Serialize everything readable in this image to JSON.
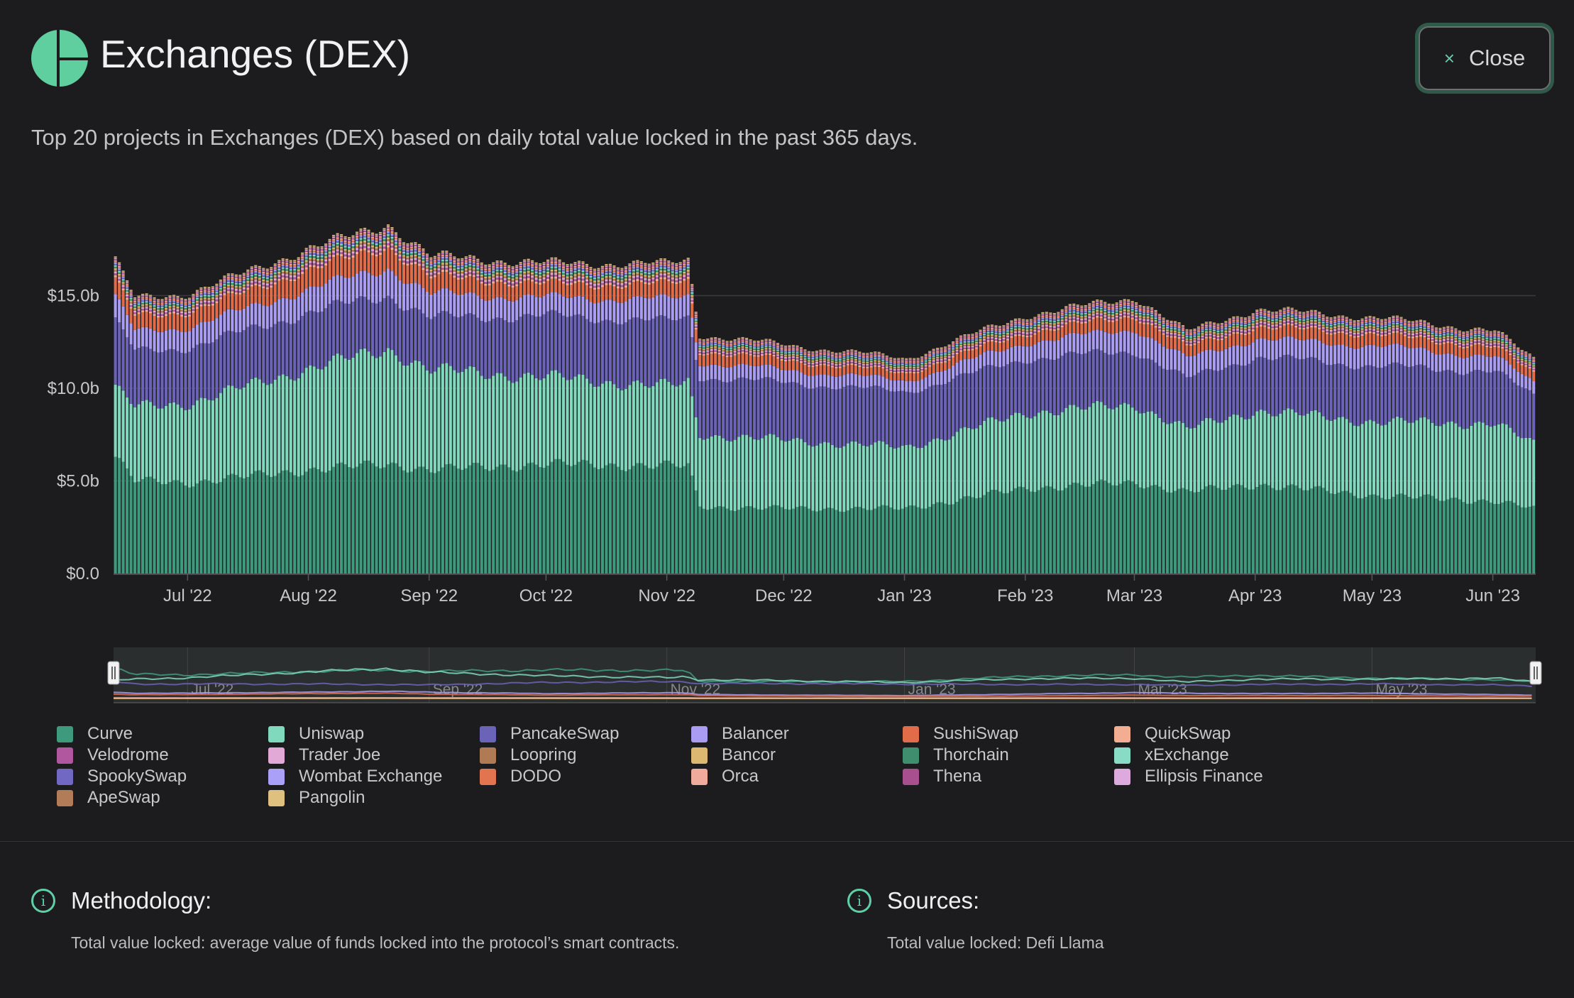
{
  "header": {
    "title": "Exchanges (DEX)",
    "close_label": "Close",
    "close_icon": "×"
  },
  "subtitle": "Top 20 projects in Exchanges (DEX) based on daily total value locked in the past 365 days.",
  "chart_data": {
    "type": "bar",
    "stacked": true,
    "title": "",
    "xlabel": "",
    "ylabel": "",
    "ylim": [
      0,
      19
    ],
    "y_ticks": [
      {
        "v": 0,
        "label": "$0.0"
      },
      {
        "v": 5,
        "label": "$5.0b"
      },
      {
        "v": 10,
        "label": "$10.0b"
      },
      {
        "v": 15,
        "label": "$15.0b"
      }
    ],
    "x_ticks": [
      {
        "d": 19,
        "label": "Jul '22"
      },
      {
        "d": 50,
        "label": "Aug '22"
      },
      {
        "d": 81,
        "label": "Sep '22"
      },
      {
        "d": 111,
        "label": "Oct '22"
      },
      {
        "d": 142,
        "label": "Nov '22"
      },
      {
        "d": 172,
        "label": "Dec '22"
      },
      {
        "d": 203,
        "label": "Jan '23"
      },
      {
        "d": 234,
        "label": "Feb '23"
      },
      {
        "d": 262,
        "label": "Mar '23"
      },
      {
        "d": 293,
        "label": "Apr '23"
      },
      {
        "d": 323,
        "label": "May '23"
      },
      {
        "d": 354,
        "label": "Jun '23"
      }
    ],
    "navigator_labels": [
      {
        "d": 19,
        "label": "Jul '22"
      },
      {
        "d": 81,
        "label": "Sep '22"
      },
      {
        "d": 142,
        "label": "Nov '22"
      },
      {
        "d": 203,
        "label": "Jan '23"
      },
      {
        "d": 262,
        "label": "Mar '23"
      },
      {
        "d": 323,
        "label": "May '23"
      }
    ],
    "days": 365,
    "key_days": [
      0,
      5,
      19,
      50,
      70,
      81,
      111,
      142,
      147,
      150,
      172,
      203,
      234,
      262,
      275,
      293,
      323,
      354,
      364
    ],
    "unit": "$ billions",
    "series": [
      {
        "name": "Curve",
        "color": "#3e9a7c",
        "values": [
          6.3,
          5.0,
          4.9,
          5.6,
          5.9,
          5.6,
          5.9,
          5.8,
          5.8,
          3.6,
          3.5,
          3.5,
          4.6,
          4.9,
          4.4,
          4.8,
          4.2,
          3.9,
          3.5
        ]
      },
      {
        "name": "Uniswap",
        "color": "#80d8bd",
        "values": [
          3.7,
          4.0,
          4.3,
          5.5,
          6.2,
          5.4,
          4.7,
          4.3,
          4.5,
          3.9,
          3.7,
          3.3,
          4.1,
          4.2,
          3.4,
          4.0,
          4.0,
          4.2,
          3.5
        ]
      },
      {
        "name": "PancakeSwap",
        "color": "#6b63b8",
        "values": [
          3.6,
          3.0,
          3.0,
          3.0,
          2.9,
          2.8,
          3.3,
          3.5,
          3.5,
          3.1,
          3.1,
          3.0,
          2.9,
          2.9,
          2.7,
          2.9,
          3.0,
          2.8,
          2.6
        ]
      },
      {
        "name": "Balancer",
        "color": "#a99cf2",
        "values": [
          1.3,
          1.1,
          1.1,
          1.3,
          1.5,
          1.3,
          1.0,
          1.2,
          1.2,
          0.8,
          0.7,
          0.6,
          0.9,
          1.2,
          1.1,
          1.0,
          1.1,
          0.8,
          0.7
        ]
      },
      {
        "name": "SushiSwap",
        "color": "#e06c4a",
        "values": [
          0.9,
          0.8,
          0.8,
          1.0,
          1.1,
          0.9,
          0.7,
          0.8,
          0.8,
          0.6,
          0.5,
          0.4,
          0.5,
          0.7,
          0.6,
          0.6,
          0.6,
          0.5,
          0.5
        ]
      },
      {
        "name": "QuickSwap",
        "color": "#f2ad92",
        "base": 0.09
      },
      {
        "name": "Velodrome",
        "color": "#b0579f",
        "base": 0.08
      },
      {
        "name": "Trader Joe",
        "color": "#e2a8d6",
        "base": 0.08
      },
      {
        "name": "Loopring",
        "color": "#b07a55",
        "base": 0.07
      },
      {
        "name": "Bancor",
        "color": "#dcb870",
        "base": 0.07
      },
      {
        "name": "Thorchain",
        "color": "#3f8f6e",
        "base": 0.07
      },
      {
        "name": "xExchange",
        "color": "#88dcc6",
        "base": 0.06
      },
      {
        "name": "SpookySwap",
        "color": "#7068c2",
        "base": 0.06
      },
      {
        "name": "Wombat Exchange",
        "color": "#aba0f7",
        "base": 0.06
      },
      {
        "name": "DODO",
        "color": "#e2754f",
        "base": 0.05
      },
      {
        "name": "Orca",
        "color": "#f0ab9c",
        "base": 0.05
      },
      {
        "name": "Thena",
        "color": "#a8508f",
        "base": 0.05
      },
      {
        "name": "Ellipsis Finance",
        "color": "#dcaadc",
        "base": 0.04
      },
      {
        "name": "ApeSwap",
        "color": "#b27c58",
        "base": 0.04
      },
      {
        "name": "Pangolin",
        "color": "#dfc07e",
        "base": 0.04
      }
    ]
  },
  "methodology": {
    "title": "Methodology:",
    "text": "Total value locked: average value of funds locked into the protocol’s smart contracts."
  },
  "sources": {
    "title": "Sources:",
    "text": "Total value locked: Defi Llama"
  },
  "colors": {
    "accent": "#5fd0a5",
    "background": "#1c1c1e"
  }
}
